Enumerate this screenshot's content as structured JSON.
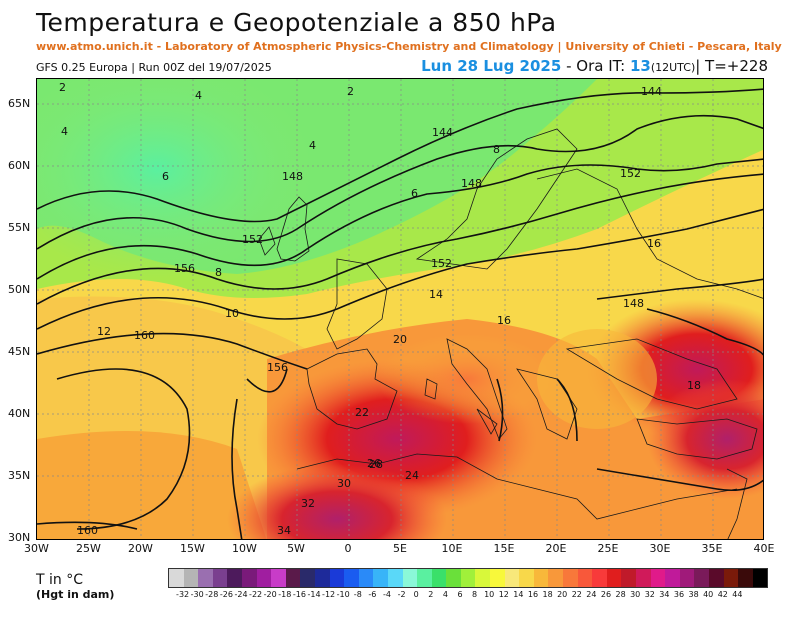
{
  "header": {
    "title": "Temperatura e Geopotenziale a 850 hPa",
    "subtitle": "www.atmo.unich.it - Laboratory of Atmospheric Physics-Chemistry and Climatology | University of Chieti - Pescara, Italy",
    "run_info": "GFS 0.25 Europa | Run 00Z del 19/07/2025",
    "valid_date": "Lun 28 Lug 2025",
    "ora_label": "- Ora IT:",
    "ora_value": "13",
    "utc": "(12UTC)",
    "lead_time": "| T=+228"
  },
  "map": {
    "lon_labels": [
      "30W",
      "25W",
      "20W",
      "15W",
      "10W",
      "5W",
      "0",
      "5E",
      "10E",
      "15E",
      "20E",
      "25E",
      "30E",
      "35E",
      "40E"
    ],
    "lat_labels": [
      "65N",
      "60N",
      "55N",
      "50N",
      "45N",
      "40N",
      "35N",
      "30N"
    ],
    "temperature_labels": [
      "2",
      "2",
      "4",
      "4",
      "4",
      "6",
      "6",
      "8",
      "8",
      "10",
      "12",
      "14",
      "16",
      "16",
      "18",
      "20",
      "22",
      "24",
      "26",
      "28",
      "30",
      "32",
      "34"
    ],
    "geopotential_labels": [
      "144",
      "144",
      "148",
      "148",
      "152",
      "152",
      "156",
      "156",
      "160",
      "160",
      "148",
      "152"
    ]
  },
  "legend": {
    "label": "T in °C",
    "sublabel": "(Hgt in dam)",
    "colors": [
      "#d9d9d9",
      "#b5b5b5",
      "#9a6fb0",
      "#7a3f8f",
      "#4d1a5c",
      "#7a1a7a",
      "#a01ea0",
      "#c83cc8",
      "#5a1a4a",
      "#2a2a6a",
      "#1e2a9a",
      "#1a3ad8",
      "#1a5cf0",
      "#2a8af8",
      "#38b4f8",
      "#5ad8f8",
      "#8af8d8",
      "#5af0a0",
      "#3ae06a",
      "#6ae03a",
      "#a0f03a",
      "#d8f83a",
      "#f8f83a",
      "#f8e87a",
      "#f8d84a",
      "#f8b83a",
      "#f8983a",
      "#f8783a",
      "#f8583a",
      "#f83a3a",
      "#e01e1e",
      "#c01a2a",
      "#d01a5a",
      "#e01a8a",
      "#c01a9a",
      "#a01a7a",
      "#7a1a5a",
      "#5a0a2a",
      "#7a1a0a",
      "#3a0a0a",
      "#000000"
    ],
    "ticks": [
      "-32",
      "-30",
      "-28",
      "-26",
      "-24",
      "-22",
      "-20",
      "-18",
      "-16",
      "-14",
      "-12",
      "-10",
      "-8",
      "-6",
      "-4",
      "-2",
      "0",
      "2",
      "4",
      "6",
      "8",
      "10",
      "12",
      "14",
      "16",
      "18",
      "20",
      "22",
      "24",
      "26",
      "28",
      "30",
      "32",
      "34",
      "36",
      "38",
      "40",
      "42",
      "44"
    ]
  }
}
